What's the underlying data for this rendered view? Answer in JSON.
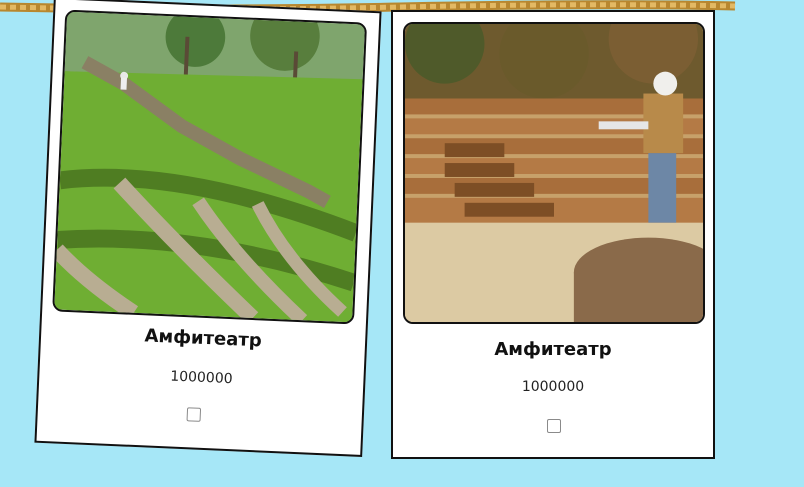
{
  "cards": [
    {
      "title": "Амфитеатр",
      "price": "1000000",
      "image": "grass-amphitheater-photo"
    },
    {
      "title": "Амфитеатр",
      "price": "1000000",
      "image": "wooden-amphitheater-photo"
    }
  ],
  "colors": {
    "background": "#a6e7f7",
    "rope": "#d1a34a",
    "card": "#ffffff"
  }
}
